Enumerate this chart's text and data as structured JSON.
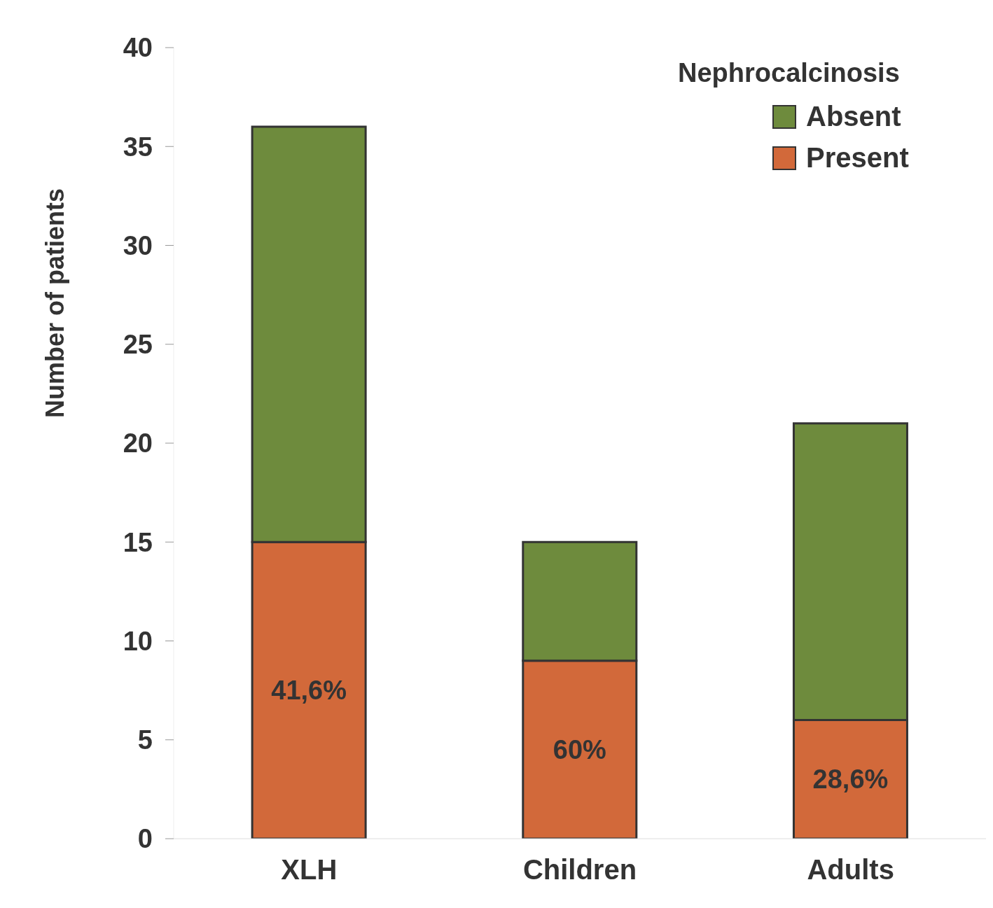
{
  "chart_data": {
    "type": "bar",
    "ylabel": "Number of patients",
    "legend_title": "Nephrocalcinosis",
    "categories": [
      "XLH",
      "Children",
      "Adults"
    ],
    "series": [
      {
        "name": "Present",
        "color": "#d2693a",
        "values": [
          15,
          9,
          6
        ]
      },
      {
        "name": "Absent",
        "color": "#6e8b3d",
        "values": [
          21,
          6,
          15
        ]
      }
    ],
    "annotations": [
      "41,6%",
      "60%",
      "28,6%"
    ],
    "stacked": true,
    "ylim": [
      0,
      40
    ],
    "yticks": [
      0,
      5,
      10,
      15,
      20,
      25,
      30,
      35,
      40
    ],
    "grid": false,
    "legend": "top right"
  }
}
